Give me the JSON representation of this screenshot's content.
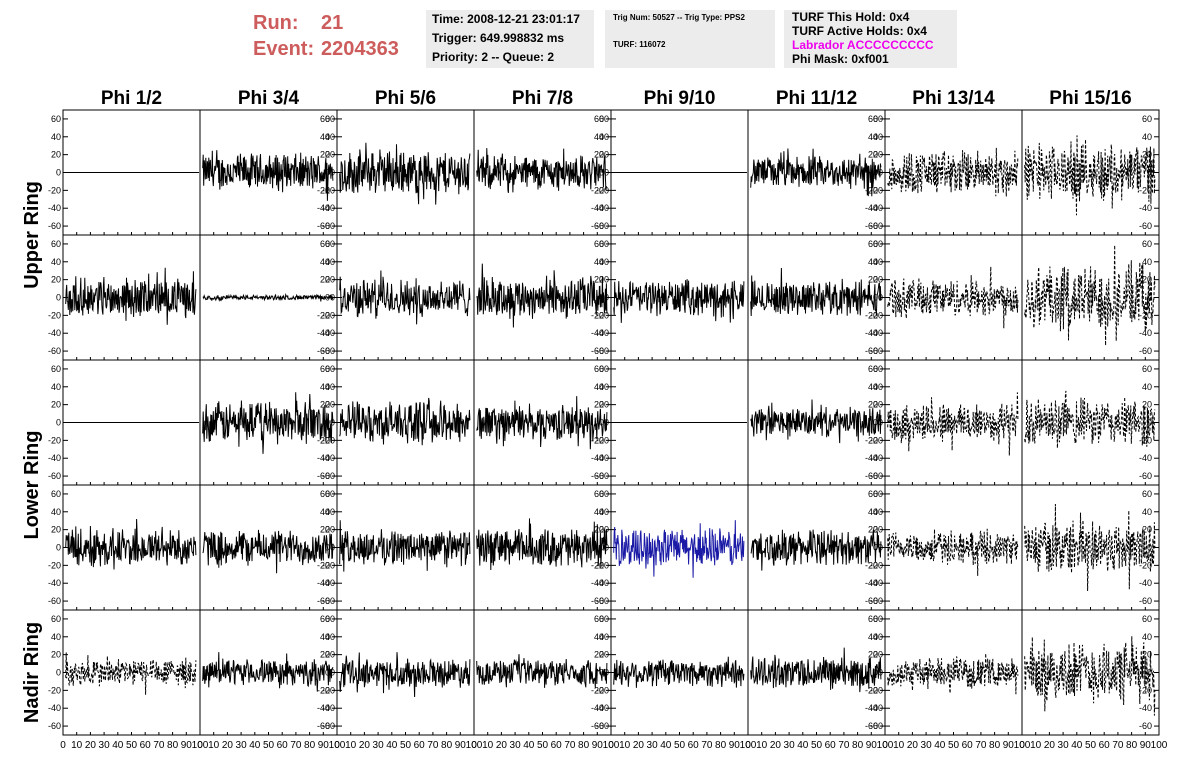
{
  "header": {
    "run_label": "Run:",
    "run_value": "21",
    "event_label": "Event:",
    "event_value": "2204363",
    "time": "Time: 2008-12-21 23:01:17",
    "trigger": "Trigger: 649.998832 ms",
    "priority": "Priority: 2 -- Queue: 2",
    "trig_num": "Trig Num: 50527 -- Trig Type: PPS2",
    "turf": "TURF: 116072",
    "turf_this_hold": "TURF This Hold: 0x4",
    "turf_active_holds": "TURF Active Holds: 0x4",
    "labrador": "Labrador ACCCCCCCCC",
    "phi_mask": "Phi Mask: 0xf001"
  },
  "colors": {
    "run_text": "#cd5c5c",
    "labrador_text": "#ee00ee",
    "highlight_trace": "#1a1aa6",
    "info_bg": "#ececec"
  },
  "chart_data": {
    "type": "line",
    "columns": [
      "Phi 1/2",
      "Phi 3/4",
      "Phi 5/6",
      "Phi 7/8",
      "Phi 9/10",
      "Phi 11/12",
      "Phi 13/14",
      "Phi 15/16"
    ],
    "row_groups": [
      {
        "label": "Upper Ring",
        "rows": [
          0,
          1
        ]
      },
      {
        "label": "Lower Ring",
        "rows": [
          2,
          3
        ]
      },
      {
        "label": "Nadir Ring",
        "rows": [
          4
        ]
      }
    ],
    "ylim": [
      -70,
      70
    ],
    "yticks": [
      -60,
      -40,
      -20,
      0,
      20,
      40,
      60
    ],
    "xlim": [
      0,
      100
    ],
    "xticks": [
      0,
      10,
      20,
      30,
      40,
      50,
      60,
      70,
      80,
      90,
      100
    ],
    "samples_x_range": [
      2,
      97
    ],
    "n_samples": 260,
    "trace_note_amplitude_is_approximate": true,
    "panels": [
      [
        {
          "style": "flat",
          "amp": 0
        },
        {
          "style": "solid",
          "amp": 24
        },
        {
          "style": "solid",
          "amp": 28
        },
        {
          "style": "solid",
          "amp": 22
        },
        {
          "style": "flat",
          "amp": 0
        },
        {
          "style": "solid",
          "amp": 20
        },
        {
          "style": "dashed",
          "amp": 28
        },
        {
          "style": "dashed",
          "amp": 36
        }
      ],
      [
        {
          "style": "solid",
          "amp": 24
        },
        {
          "style": "solid",
          "amp": 3
        },
        {
          "style": "solid",
          "amp": 24
        },
        {
          "style": "solid",
          "amp": 26
        },
        {
          "style": "solid",
          "amp": 22
        },
        {
          "style": "solid",
          "amp": 22
        },
        {
          "style": "dashed",
          "amp": 24
        },
        {
          "style": "dashed",
          "amp": 42
        }
      ],
      [
        {
          "style": "flat",
          "amp": 0
        },
        {
          "style": "solid",
          "amp": 26
        },
        {
          "style": "solid",
          "amp": 26
        },
        {
          "style": "solid",
          "amp": 22
        },
        {
          "style": "flat",
          "amp": 0
        },
        {
          "style": "solid",
          "amp": 18
        },
        {
          "style": "dashed",
          "amp": 26
        },
        {
          "style": "dashed",
          "amp": 30
        }
      ],
      [
        {
          "style": "solid",
          "amp": 24
        },
        {
          "style": "solid",
          "amp": 22
        },
        {
          "style": "solid",
          "amp": 22
        },
        {
          "style": "solid",
          "amp": 24
        },
        {
          "style": "blue",
          "amp": 24
        },
        {
          "style": "solid",
          "amp": 22
        },
        {
          "style": "dashed",
          "amp": 20
        },
        {
          "style": "dashed",
          "amp": 34
        }
      ],
      [
        {
          "style": "dashed",
          "amp": 18
        },
        {
          "style": "solid",
          "amp": 16
        },
        {
          "style": "solid",
          "amp": 18
        },
        {
          "style": "solid",
          "amp": 16
        },
        {
          "style": "solid",
          "amp": 18
        },
        {
          "style": "solid",
          "amp": 20
        },
        {
          "style": "dashed",
          "amp": 18
        },
        {
          "style": "dashed",
          "amp": 38
        }
      ]
    ]
  }
}
